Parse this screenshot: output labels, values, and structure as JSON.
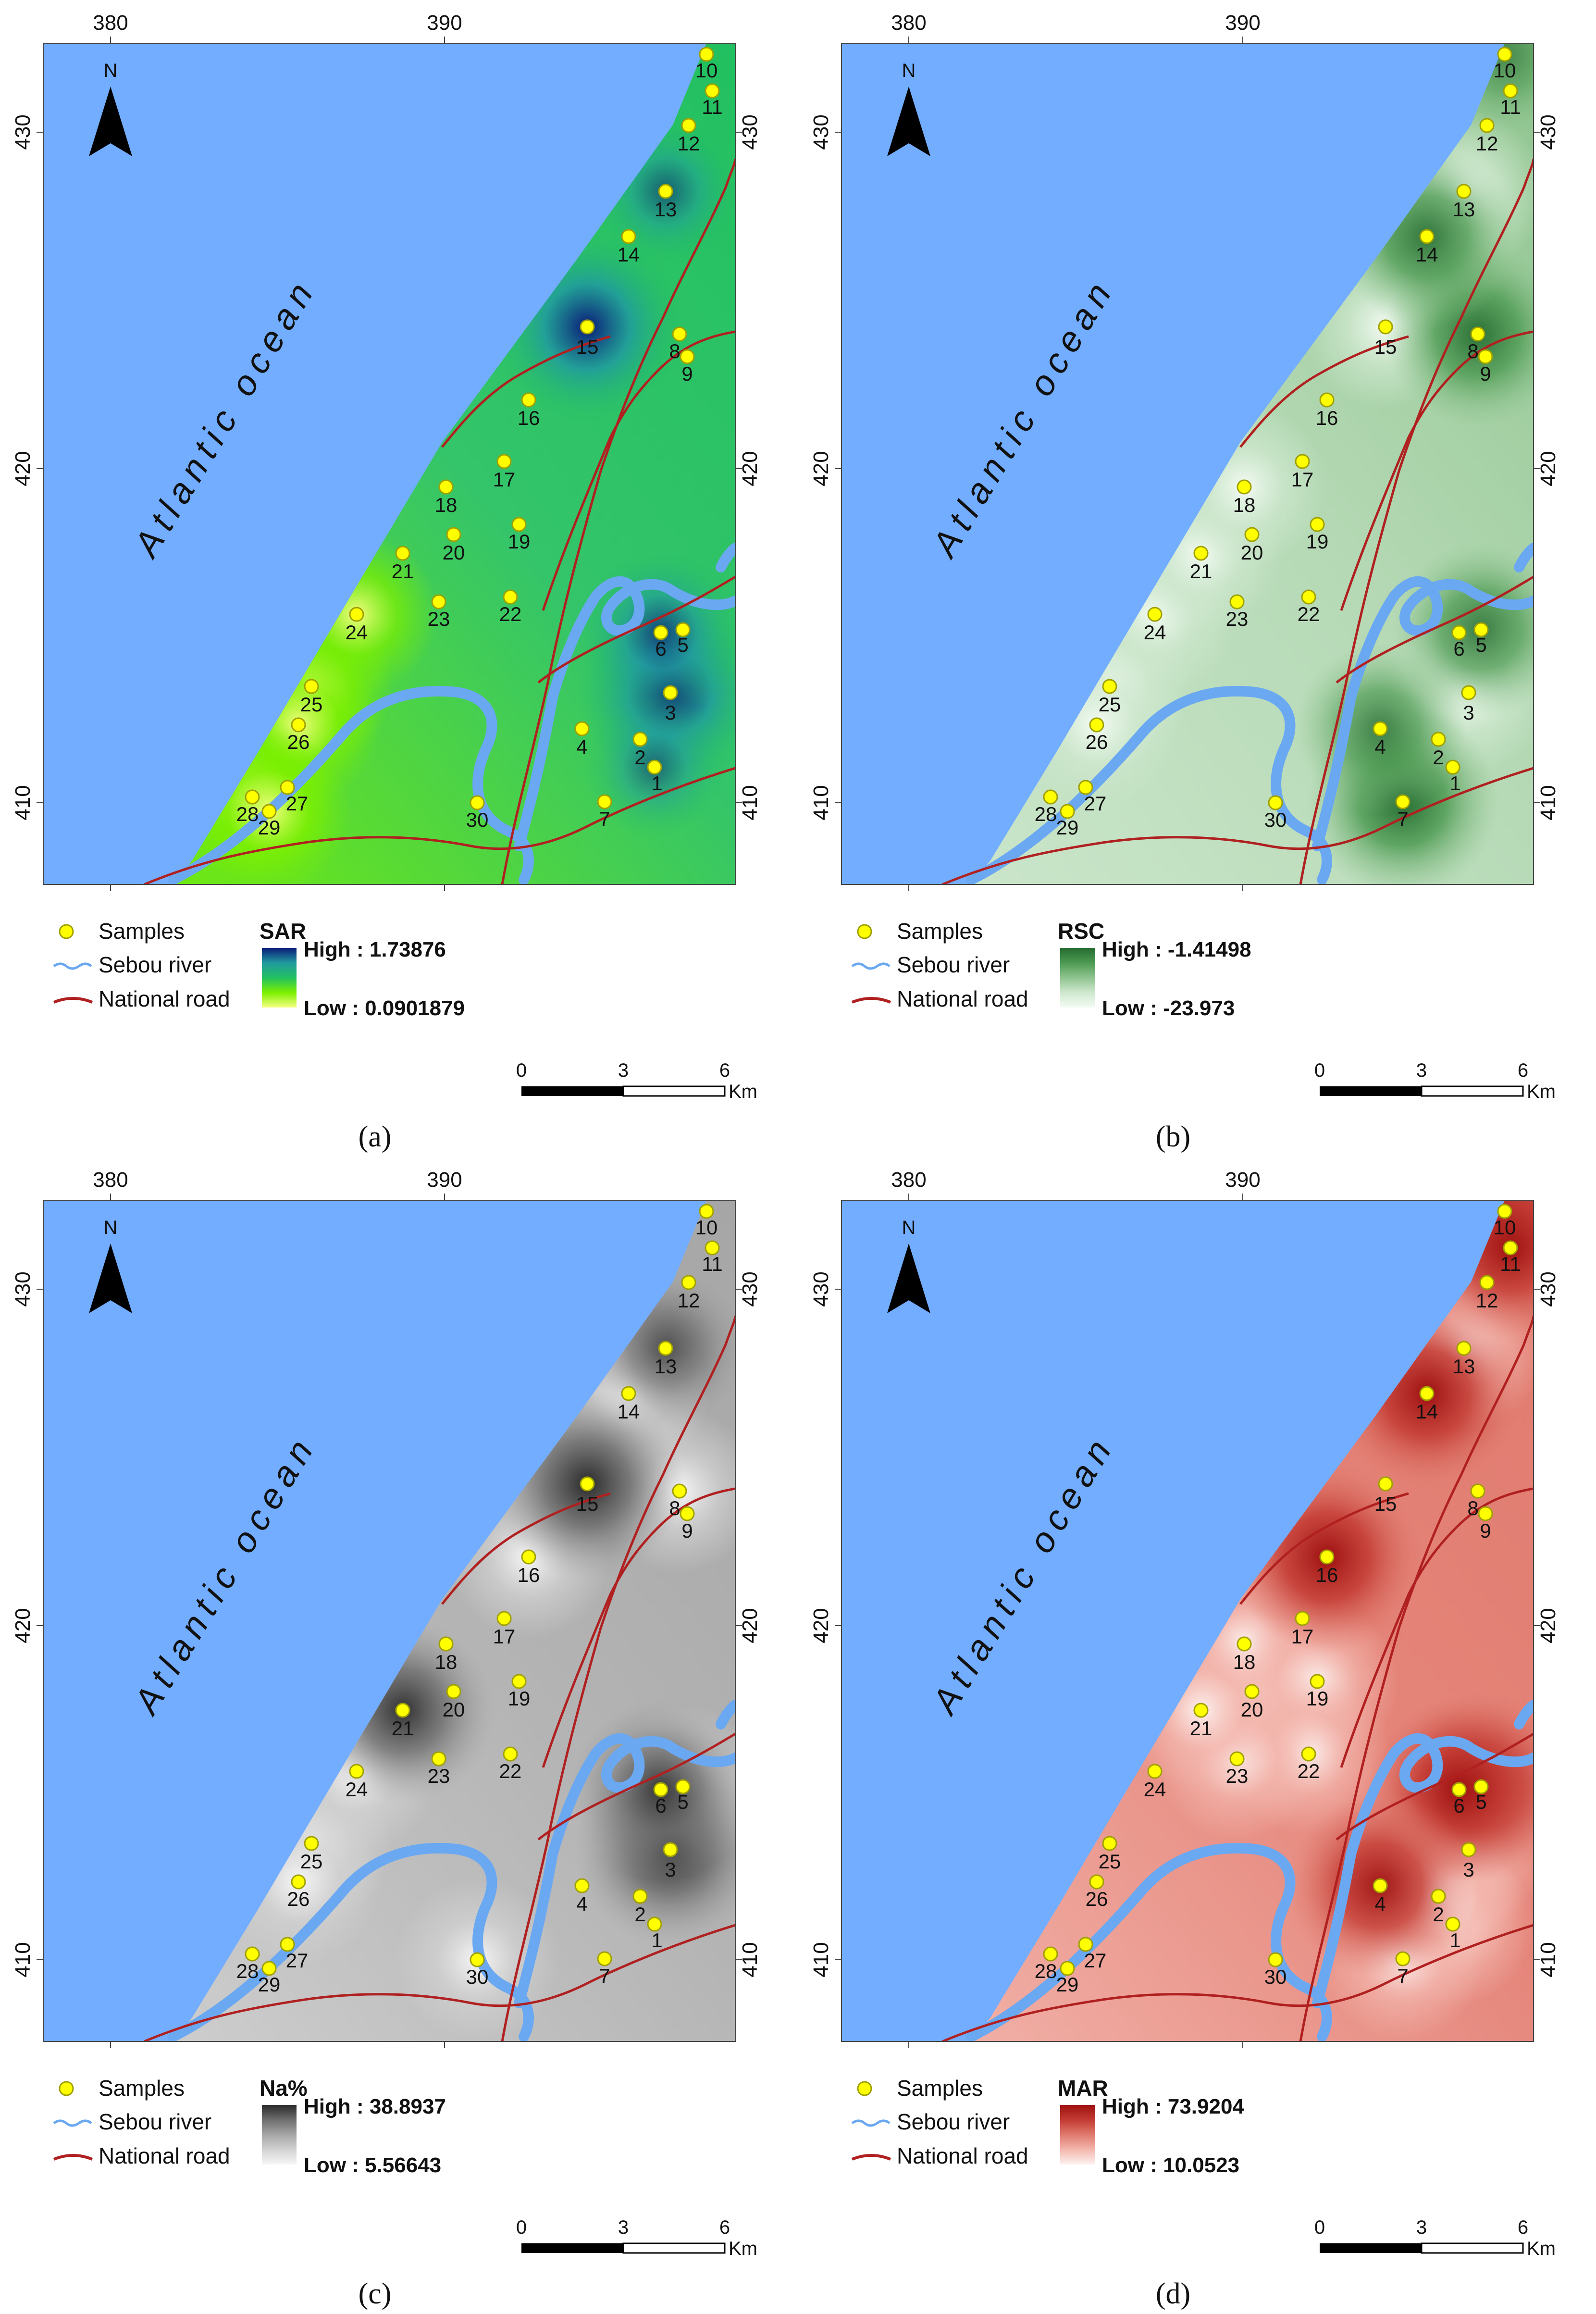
{
  "north_label": "N",
  "ocean_label": "Atlantic ocean",
  "x_ticks": [
    "380",
    "390"
  ],
  "y_ticks": [
    "430",
    "420",
    "410"
  ],
  "legend": {
    "samples": "Samples",
    "river": "Sebou river",
    "road": "National road"
  },
  "scale_bar": {
    "labels": [
      "0",
      "3",
      "6"
    ],
    "unit": "Km"
  },
  "samples": [
    "1",
    "2",
    "3",
    "4",
    "5",
    "6",
    "7",
    "8",
    "9",
    "10",
    "11",
    "12",
    "13",
    "14",
    "15",
    "16",
    "17",
    "18",
    "19",
    "20",
    "21",
    "22",
    "23",
    "24",
    "25",
    "26",
    "27",
    "28",
    "29",
    "30"
  ],
  "colors": {
    "ocean": "#73adff",
    "river": "#6aa8f2",
    "road": "#b02020",
    "sample_fill": "#ffff00",
    "sample_stroke": "#a0a000"
  },
  "panels": [
    {
      "id": "a",
      "caption": "(a)",
      "variable": "SAR",
      "high_label": "High : 1.73876",
      "low_label": "Low : 0.0901879",
      "ramp": [
        "#f5ff80",
        "#7cf000",
        "#22c060",
        "#209aa0",
        "#0a1a78"
      ],
      "base_color": "#34c46a",
      "hotspots": [
        {
          "sample": "15",
          "level": 1.0
        },
        {
          "sample": "3",
          "level": 0.95
        },
        {
          "sample": "6",
          "level": 0.75
        },
        {
          "sample": "13",
          "level": 0.6
        },
        {
          "sample": "1",
          "level": 0.55
        }
      ],
      "lowspots": [
        "25",
        "26",
        "28",
        "29",
        "24"
      ]
    },
    {
      "id": "b",
      "caption": "(b)",
      "variable": "RSC",
      "high_label": "High : -1.41498",
      "low_label": "Low : -23.973",
      "ramp": [
        "#f4fbf4",
        "#cfe8cf",
        "#8fc48f",
        "#4d9a52",
        "#256b30"
      ],
      "base_color": "#b5d9b5",
      "hotspots": [
        {
          "sample": "7",
          "level": 1.0
        },
        {
          "sample": "8",
          "level": 0.95
        },
        {
          "sample": "14",
          "level": 0.9
        },
        {
          "sample": "5",
          "level": 0.85
        },
        {
          "sample": "4",
          "level": 0.8
        },
        {
          "sample": "10",
          "level": 0.7
        }
      ],
      "lowspots": [
        "15",
        "13",
        "3",
        "24",
        "21",
        "18",
        "25",
        "26"
      ]
    },
    {
      "id": "c",
      "caption": "(c)",
      "variable": "Na%",
      "high_label": "High : 38.8937",
      "low_label": "Low : 5.56643",
      "ramp": [
        "#f7f7f7",
        "#d2d2d2",
        "#a6a6a6",
        "#6e6e6e",
        "#2a2a2a"
      ],
      "base_color": "#b4b4b4",
      "hotspots": [
        {
          "sample": "15",
          "level": 1.0
        },
        {
          "sample": "3",
          "level": 1.0
        },
        {
          "sample": "21",
          "level": 0.95
        },
        {
          "sample": "6",
          "level": 0.9
        },
        {
          "sample": "13",
          "level": 0.75
        }
      ],
      "lowspots": [
        "14",
        "16",
        "5",
        "25",
        "26",
        "24",
        "8",
        "30"
      ]
    },
    {
      "id": "d",
      "caption": "(d)",
      "variable": "MAR",
      "high_label": "High : 73.9204",
      "low_label": "Low : 10.0523",
      "ramp": [
        "#fdf2f0",
        "#f3b7ae",
        "#e07a6e",
        "#c33b33",
        "#9e1010"
      ],
      "base_color": "#e5857a",
      "hotspots": [
        {
          "sample": "14",
          "level": 1.0
        },
        {
          "sample": "16",
          "level": 1.0
        },
        {
          "sample": "5",
          "level": 1.0
        },
        {
          "sample": "6",
          "level": 0.95
        },
        {
          "sample": "4",
          "level": 0.95
        },
        {
          "sample": "10",
          "level": 1.0
        },
        {
          "sample": "11",
          "level": 0.95
        }
      ],
      "lowspots": [
        "20",
        "18",
        "19",
        "22",
        "23",
        "21",
        "3",
        "13",
        "1",
        "7",
        "2"
      ]
    }
  ]
}
